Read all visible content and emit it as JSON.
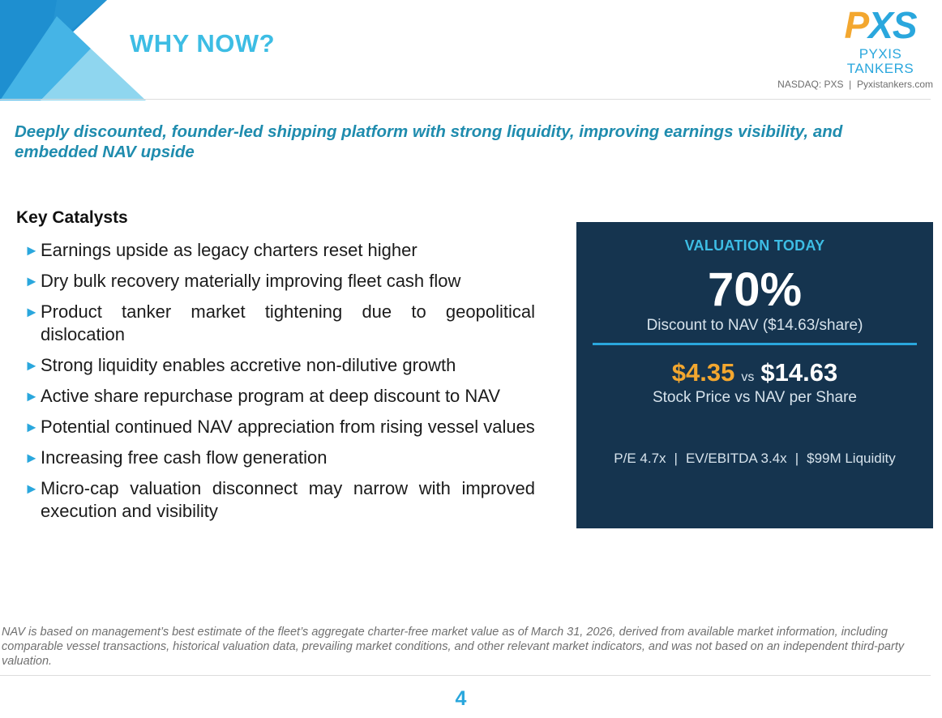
{
  "header": {
    "title": "WHY NOW?",
    "logo": {
      "mark_p": "P",
      "mark_xs": "XS",
      "name": "PYXIS TANKERS"
    },
    "ticker": "NASDAQ: PXS  |  Pyxistankers.com"
  },
  "subtitle": "Deeply discounted, founder-led shipping platform with strong liquidity, improving earnings visibility, and embedded NAV upside",
  "catalysts": {
    "title": "Key Catalysts",
    "items": [
      "Earnings upside as legacy charters reset higher",
      "Dry bulk recovery materially improving fleet cash flow",
      "Product tanker market tightening due to geopolitical dislocation",
      "Strong liquidity enables accretive non-dilutive growth",
      "Active share repurchase program at deep discount to NAV",
      "Potential continued NAV appreciation from rising vessel values",
      "Increasing free cash flow generation",
      "Micro-cap valuation disconnect may narrow with improved execution and visibility"
    ]
  },
  "valuation": {
    "title": "VALUATION TODAY",
    "discount_pct": "70%",
    "discount_label": "Discount to NAV ($14.63/share)",
    "stock_price": "$4.35",
    "vs": "vs",
    "nav_per_share": "$14.63",
    "price_caption": "Stock Price vs NAV per Share",
    "metrics": [
      "P/E 4.7x",
      "EV/EBITDA 3.4x",
      "$99M Liquidity"
    ]
  },
  "footnote": "NAV is based on management’s best estimate of the fleet’s aggregate charter-free market value as of March 31, 2026, derived from available market information, including comparable vessel transactions, historical valuation data, prevailing market conditions, and other relevant market indicators, and was not based on an independent third-party valuation.",
  "page_number": "4",
  "colors": {
    "accent_blue": "#2aa7dd",
    "title_blue": "#3dbde4",
    "navy_box": "#15344f",
    "orange": "#f3a72f"
  }
}
